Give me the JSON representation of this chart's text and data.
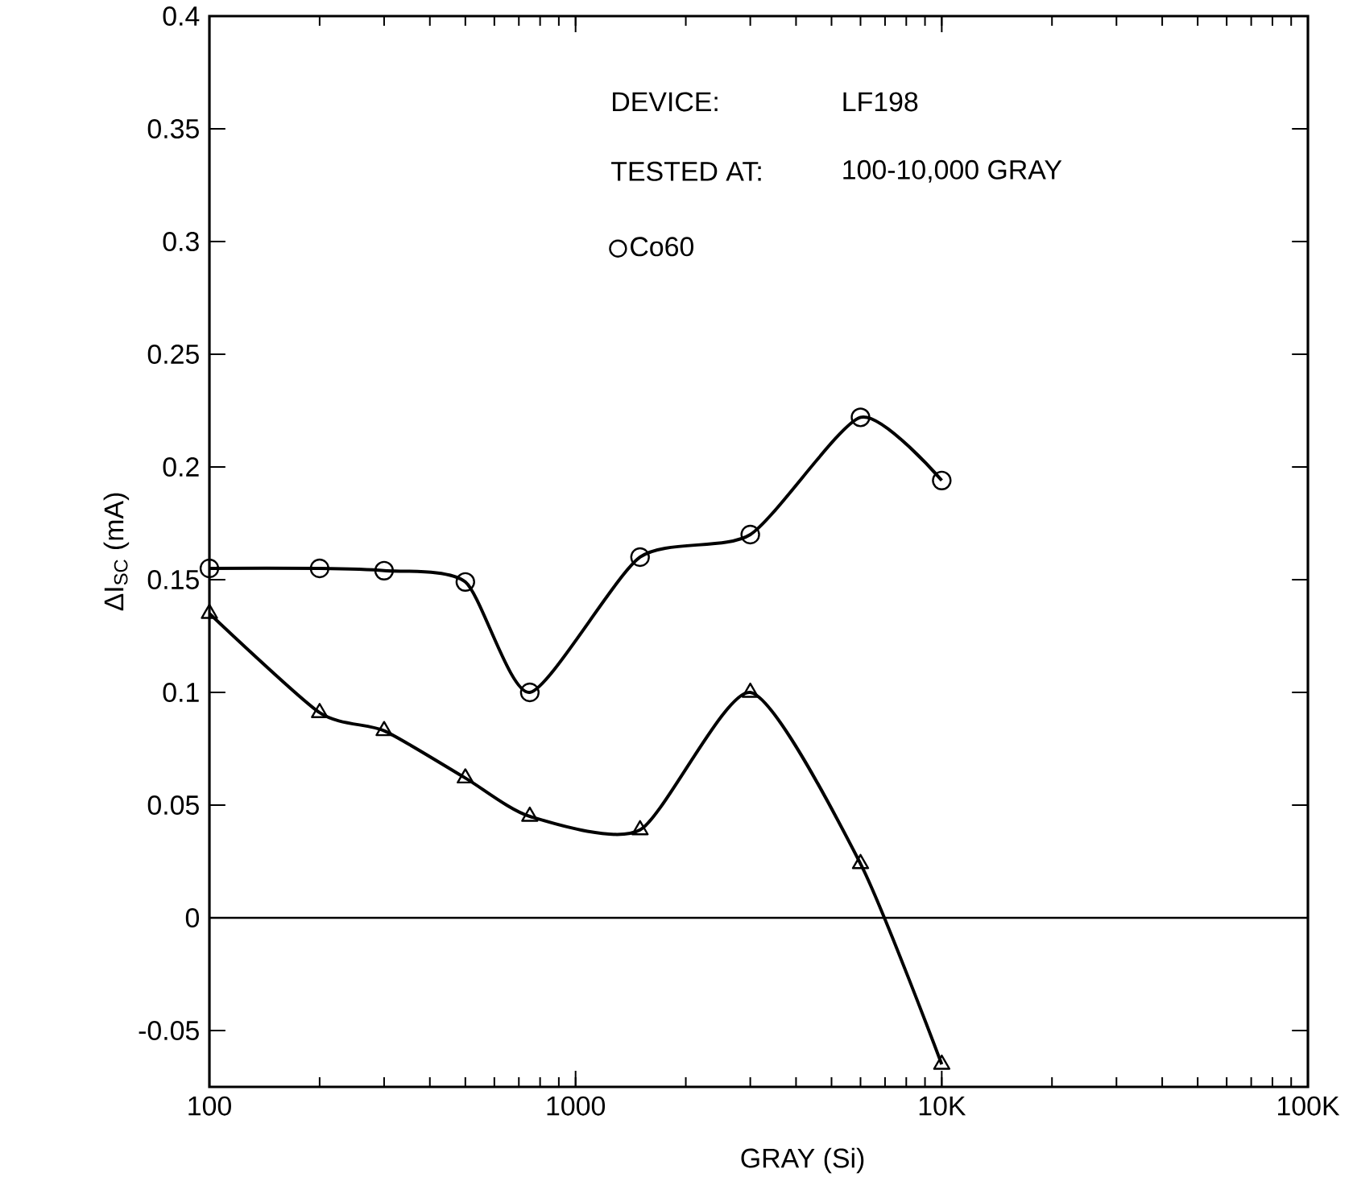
{
  "chart_data": {
    "type": "line",
    "xlabel": "GRAY (Si)",
    "ylabel": "ΔI$_{SC}$ (mA)",
    "log": "x",
    "xlim": [
      100,
      100000
    ],
    "ylim": [
      -0.075,
      0.4
    ],
    "xticks": [
      100,
      1000,
      {
        "value": 10000,
        "label": "10K"
      },
      {
        "value": 100000,
        "label": "100K"
      }
    ],
    "yticks": [
      -0.05,
      0,
      0.05,
      0.1,
      0.15,
      0.2,
      0.25,
      0.3,
      0.35,
      0.4
    ],
    "x": [
      100,
      200,
      300,
      500,
      750,
      1500,
      3000,
      6000,
      10000
    ],
    "series": [
      {
        "color": "#000000",
        "marker": "triangle",
        "values": [
          0.135,
          0.091,
          0.083,
          0.062,
          0.045,
          0.039,
          0.1,
          0.024,
          -0.065
        ]
      },
      {
        "name": "Co60",
        "color": "#000000",
        "marker": "circle",
        "values": [
          0.155,
          0.155,
          0.154,
          0.149,
          0.1,
          0.16,
          0.17,
          0.222,
          0.194
        ]
      }
    ],
    "ref_lines": [
      {
        "axis": "y",
        "value": 0
      }
    ],
    "legend": "top left",
    "grid": false,
    "annotations": [
      "DEVICE:",
      "LF198",
      "TESTED AT:",
      "100-10,000 GRAY"
    ]
  }
}
